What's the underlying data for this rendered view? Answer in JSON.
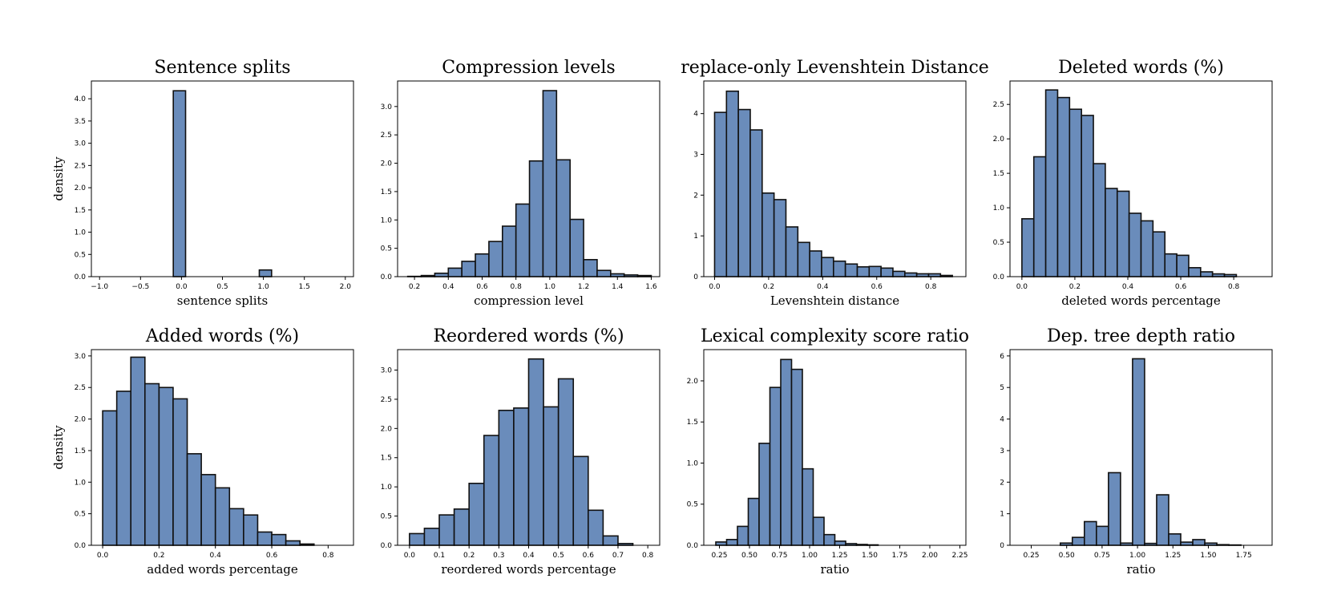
{
  "figure": {
    "bar_color": "#6a8cbb",
    "edge_color": "#111111"
  },
  "chart_data": [
    {
      "type": "bar",
      "title": "Sentence splits",
      "xlabel": "sentence splits",
      "ylabel": "density",
      "xlim": [
        -1.1,
        2.1
      ],
      "ylim": [
        0,
        4.4
      ],
      "xticks": [
        -1.0,
        -0.5,
        0.0,
        0.5,
        1.0,
        1.5,
        2.0
      ],
      "xtick_labels": [
        "−1.0",
        "−0.5",
        "0.0",
        "0.5",
        "1.0",
        "1.5",
        "2.0"
      ],
      "yticks": [
        0,
        0.5,
        1.0,
        1.5,
        2.0,
        2.5,
        3.0,
        3.5,
        4.0
      ],
      "ytick_labels": [
        "0.0",
        "0.5",
        "1.0",
        "1.5",
        "2.0",
        "2.5",
        "3.0",
        "3.5",
        "4.0"
      ],
      "bin_edges": [
        -1.0,
        -0.85,
        -0.7,
        -0.55,
        -0.4,
        -0.25,
        -0.1,
        0.05,
        0.2,
        0.35,
        0.5,
        0.65,
        0.8,
        0.95,
        1.1,
        1.25,
        1.4,
        1.55,
        1.7,
        1.85,
        2.0
      ],
      "bin_edges_note": "",
      "values": [
        0,
        0,
        0,
        0,
        0,
        0,
        4.18,
        0,
        0,
        0,
        0,
        0,
        0,
        0.15,
        0,
        0,
        0,
        0,
        0,
        0
      ]
    },
    {
      "type": "bar",
      "title": "Compression levels",
      "xlabel": "compression level",
      "ylabel": "",
      "xlim": [
        0.1,
        1.65
      ],
      "ylim": [
        0,
        3.45
      ],
      "xticks": [
        0.2,
        0.4,
        0.6,
        0.8,
        1.0,
        1.2,
        1.4,
        1.6
      ],
      "xtick_labels": [
        "0.2",
        "0.4",
        "0.6",
        "0.8",
        "1.0",
        "1.2",
        "1.4",
        "1.6"
      ],
      "yticks": [
        0,
        0.5,
        1.0,
        1.5,
        2.0,
        2.5,
        3.0
      ],
      "ytick_labels": [
        "0.0",
        "0.5",
        "1.0",
        "1.5",
        "2.0",
        "2.5",
        "3.0"
      ],
      "bin_edges": [
        0.16,
        0.24,
        0.32,
        0.4,
        0.48,
        0.56,
        0.64,
        0.72,
        0.8,
        0.88,
        0.96,
        1.04,
        1.12,
        1.2,
        1.28,
        1.36,
        1.44,
        1.52,
        1.6
      ],
      "values": [
        0.005,
        0.02,
        0.06,
        0.15,
        0.27,
        0.4,
        0.62,
        0.89,
        1.28,
        2.04,
        3.28,
        2.06,
        1.01,
        0.3,
        0.11,
        0.05,
        0.03,
        0.02
      ]
    },
    {
      "type": "bar",
      "title": "replace-only Levenshtein Distance",
      "xlabel": "Levenshtein distance",
      "ylabel": "",
      "xlim": [
        -0.04,
        0.93
      ],
      "ylim": [
        0,
        4.8
      ],
      "xticks": [
        0.0,
        0.2,
        0.4,
        0.6,
        0.8
      ],
      "xtick_labels": [
        "0.0",
        "0.2",
        "0.4",
        "0.6",
        "0.8"
      ],
      "yticks": [
        0,
        1,
        2,
        3,
        4
      ],
      "ytick_labels": [
        "0",
        "1",
        "2",
        "3",
        "4"
      ],
      "bin_edges": [
        0.0,
        0.044,
        0.088,
        0.132,
        0.176,
        0.22,
        0.264,
        0.308,
        0.352,
        0.396,
        0.44,
        0.484,
        0.528,
        0.572,
        0.616,
        0.66,
        0.704,
        0.748,
        0.792,
        0.836,
        0.88
      ],
      "values": [
        4.03,
        4.55,
        4.1,
        3.6,
        2.05,
        1.89,
        1.22,
        0.84,
        0.63,
        0.47,
        0.38,
        0.31,
        0.24,
        0.25,
        0.21,
        0.13,
        0.09,
        0.07,
        0.07,
        0.03
      ]
    },
    {
      "type": "bar",
      "title": "Deleted words (%)",
      "xlabel": "deleted words percentage",
      "ylabel": "",
      "xlim": [
        -0.045,
        0.945
      ],
      "ylim": [
        0,
        2.84
      ],
      "xticks": [
        0.0,
        0.2,
        0.4,
        0.6,
        0.8
      ],
      "xtick_labels": [
        "0.0",
        "0.2",
        "0.4",
        "0.6",
        "0.8"
      ],
      "yticks": [
        0,
        0.5,
        1.0,
        1.5,
        2.0,
        2.5
      ],
      "ytick_labels": [
        "0.0",
        "0.5",
        "1.0",
        "1.5",
        "2.0",
        "2.5"
      ],
      "bin_edges": [
        0.0,
        0.045,
        0.09,
        0.135,
        0.18,
        0.225,
        0.27,
        0.315,
        0.36,
        0.405,
        0.45,
        0.495,
        0.54,
        0.585,
        0.63,
        0.675,
        0.72,
        0.765,
        0.81,
        0.855,
        0.9
      ],
      "values": [
        0.84,
        1.74,
        2.71,
        2.6,
        2.43,
        2.34,
        1.64,
        1.28,
        1.24,
        0.92,
        0.81,
        0.65,
        0.33,
        0.31,
        0.13,
        0.07,
        0.04,
        0.03,
        0,
        0
      ]
    },
    {
      "type": "bar",
      "title": "Added words (%)",
      "xlabel": "added words percentage",
      "ylabel": "density",
      "xlim": [
        -0.04,
        0.89
      ],
      "ylim": [
        0,
        3.1
      ],
      "xticks": [
        0.0,
        0.2,
        0.4,
        0.6,
        0.8
      ],
      "xtick_labels": [
        "0.0",
        "0.2",
        "0.4",
        "0.6",
        "0.8"
      ],
      "yticks": [
        0,
        0.5,
        1.0,
        1.5,
        2.0,
        2.5,
        3.0
      ],
      "ytick_labels": [
        "0.0",
        "0.5",
        "1.0",
        "1.5",
        "2.0",
        "2.5",
        "3.0"
      ],
      "bin_edges": [
        0.0,
        0.05,
        0.1,
        0.15,
        0.2,
        0.25,
        0.3,
        0.35,
        0.4,
        0.45,
        0.5,
        0.55,
        0.6,
        0.65,
        0.7,
        0.75,
        0.8,
        0.85
      ],
      "values": [
        2.13,
        2.44,
        2.98,
        2.56,
        2.5,
        2.32,
        1.45,
        1.12,
        0.91,
        0.58,
        0.48,
        0.21,
        0.17,
        0.07,
        0.02,
        0,
        0
      ]
    },
    {
      "type": "bar",
      "title": "Reordered words (%)",
      "xlabel": "reordered words percentage",
      "ylabel": "",
      "xlim": [
        -0.04,
        0.84
      ],
      "ylim": [
        0,
        3.35
      ],
      "xticks": [
        0.0,
        0.1,
        0.2,
        0.3,
        0.4,
        0.5,
        0.6,
        0.7,
        0.8
      ],
      "xtick_labels": [
        "0.0",
        "0.1",
        "0.2",
        "0.3",
        "0.4",
        "0.5",
        "0.6",
        "0.7",
        "0.8"
      ],
      "yticks": [
        0,
        0.5,
        1.0,
        1.5,
        2.0,
        2.5,
        3.0
      ],
      "ytick_labels": [
        "0.0",
        "0.5",
        "1.0",
        "1.5",
        "2.0",
        "2.5",
        "3.0"
      ],
      "bin_edges": [
        0.0,
        0.05,
        0.1,
        0.15,
        0.2,
        0.25,
        0.3,
        0.35,
        0.4,
        0.45,
        0.5,
        0.55,
        0.6,
        0.65,
        0.7,
        0.75,
        0.8
      ],
      "values": [
        0.2,
        0.29,
        0.52,
        0.62,
        1.06,
        1.88,
        2.31,
        2.35,
        3.19,
        2.37,
        2.85,
        1.52,
        0.6,
        0.16,
        0.03,
        0,
        0
      ]
    },
    {
      "type": "bar",
      "title": "Lexical complexity score ratio",
      "xlabel": "ratio",
      "ylabel": "",
      "xlim": [
        0.12,
        2.3
      ],
      "ylim": [
        0,
        2.38
      ],
      "xticks": [
        0.25,
        0.5,
        0.75,
        1.0,
        1.25,
        1.5,
        1.75,
        2.0,
        2.25
      ],
      "xtick_labels": [
        "0.25",
        "0.50",
        "0.75",
        "1.00",
        "1.25",
        "1.50",
        "1.75",
        "2.00",
        "2.25"
      ],
      "yticks": [
        0,
        0.5,
        1.0,
        1.5,
        2.0
      ],
      "ytick_labels": [
        "0.0",
        "0.5",
        "1.0",
        "1.5",
        "2.0"
      ],
      "bin_edges": [
        0.22,
        0.31,
        0.4,
        0.49,
        0.58,
        0.67,
        0.76,
        0.85,
        0.94,
        1.03,
        1.12,
        1.21,
        1.3,
        1.39,
        1.48,
        1.57,
        1.66,
        1.75,
        1.84,
        1.93,
        2.02,
        2.11,
        2.2
      ],
      "values": [
        0.04,
        0.07,
        0.23,
        0.57,
        1.24,
        1.92,
        2.26,
        2.14,
        0.93,
        0.34,
        0.13,
        0.05,
        0.02,
        0.01,
        0.005,
        0,
        0,
        0,
        0,
        0,
        0,
        0
      ]
    },
    {
      "type": "bar",
      "title": "Dep. tree depth ratio",
      "xlabel": "ratio",
      "ylabel": "",
      "xlim": [
        0.1,
        1.95
      ],
      "ylim": [
        0,
        6.2
      ],
      "xticks": [
        0.25,
        0.5,
        0.75,
        1.0,
        1.25,
        1.5,
        1.75
      ],
      "xtick_labels": [
        "0.25",
        "0.50",
        "0.75",
        "1.00",
        "1.25",
        "1.50",
        "1.75"
      ],
      "yticks": [
        0,
        1,
        2,
        3,
        4,
        5,
        6
      ],
      "ytick_labels": [
        "0",
        "1",
        "2",
        "3",
        "4",
        "5",
        "6"
      ],
      "bin_edges": [
        0.2,
        0.285,
        0.37,
        0.455,
        0.54,
        0.625,
        0.71,
        0.795,
        0.88,
        0.965,
        1.05,
        1.135,
        1.22,
        1.305,
        1.39,
        1.475,
        1.56,
        1.645,
        1.73,
        1.815
      ],
      "values": [
        0,
        0,
        0,
        0.07,
        0.25,
        0.75,
        0.6,
        2.3,
        0.07,
        5.91,
        0.06,
        1.6,
        0.36,
        0.1,
        0.18,
        0.07,
        0.02,
        0.01,
        0
      ]
    }
  ]
}
